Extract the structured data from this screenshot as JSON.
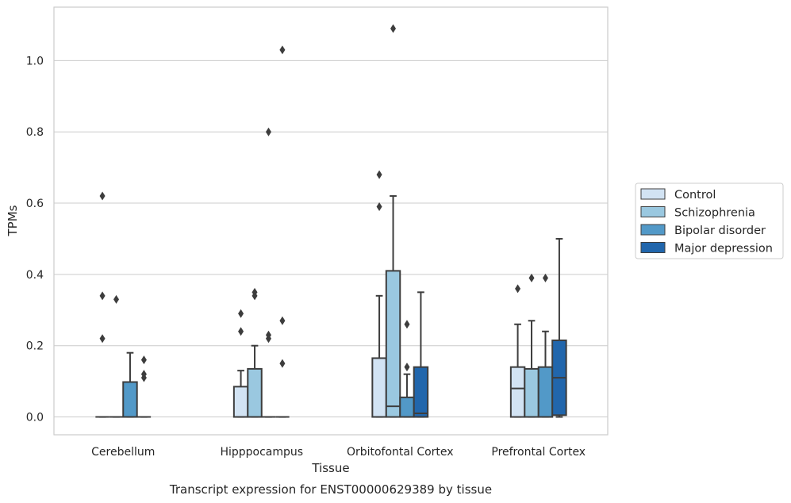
{
  "chart_data": {
    "type": "box",
    "xlabel": "Tissue",
    "ylabel": "TPMs",
    "caption": "Transcript expression for ENST00000629389 by tissue",
    "ylim": [
      -0.05,
      1.15
    ],
    "yticks": [
      "0.0",
      "0.2",
      "0.4",
      "0.6",
      "0.8",
      "1.0"
    ],
    "grid": true,
    "legend_position": "right",
    "categories": [
      "Cerebellum",
      "Hipppocampus",
      "Orbitofontal Cortex",
      "Prefrontal Cortex"
    ],
    "series": [
      {
        "name": "Control",
        "color": "#d2e3f3",
        "boxes": [
          {
            "min": 0,
            "q1": 0,
            "median": 0,
            "q3": 0,
            "max": 0,
            "outliers": [
              0.62,
              0.34,
              0.22
            ]
          },
          {
            "min": 0,
            "q1": 0,
            "median": 0,
            "q3": 0.085,
            "max": 0.13,
            "outliers": [
              0.29,
              0.24
            ]
          },
          {
            "min": 0,
            "q1": 0,
            "median": 0,
            "q3": 0.165,
            "max": 0.34,
            "outliers": [
              0.68,
              0.59
            ]
          },
          {
            "min": 0,
            "q1": 0,
            "median": 0.08,
            "q3": 0.14,
            "max": 0.26,
            "outliers": [
              0.36
            ]
          }
        ]
      },
      {
        "name": "Schizophrenia",
        "color": "#9ac8e0",
        "boxes": [
          {
            "min": 0,
            "q1": 0,
            "median": 0,
            "q3": 0,
            "max": 0,
            "outliers": [
              0.33
            ]
          },
          {
            "min": 0,
            "q1": 0,
            "median": 0,
            "q3": 0.135,
            "max": 0.2,
            "outliers": [
              0.35,
              0.34
            ]
          },
          {
            "min": 0,
            "q1": 0,
            "median": 0.03,
            "q3": 0.41,
            "max": 0.62,
            "outliers": [
              1.09
            ]
          },
          {
            "min": 0,
            "q1": 0,
            "median": 0,
            "q3": 0.135,
            "max": 0.27,
            "outliers": [
              0.39
            ]
          }
        ]
      },
      {
        "name": "Bipolar disorder",
        "color": "#5299c8",
        "boxes": [
          {
            "min": 0,
            "q1": 0,
            "median": 0,
            "q3": 0.098,
            "max": 0.18,
            "outliers": []
          },
          {
            "min": 0,
            "q1": 0,
            "median": 0,
            "q3": 0,
            "max": 0,
            "outliers": [
              0.8,
              0.23,
              0.22
            ]
          },
          {
            "min": 0,
            "q1": 0,
            "median": 0,
            "q3": 0.055,
            "max": 0.12,
            "outliers": [
              0.26,
              0.14
            ]
          },
          {
            "min": 0,
            "q1": 0,
            "median": 0,
            "q3": 0.14,
            "max": 0.24,
            "outliers": [
              0.39
            ]
          }
        ]
      },
      {
        "name": "Major depression",
        "color": "#2166ac",
        "boxes": [
          {
            "min": 0,
            "q1": 0,
            "median": 0,
            "q3": 0,
            "max": 0,
            "outliers": [
              0.16,
              0.12,
              0.11
            ]
          },
          {
            "min": 0,
            "q1": 0,
            "median": 0,
            "q3": 0,
            "max": 0,
            "outliers": [
              1.03,
              0.27,
              0.15
            ]
          },
          {
            "min": 0,
            "q1": 0,
            "median": 0.01,
            "q3": 0.14,
            "max": 0.35,
            "outliers": []
          },
          {
            "min": 0,
            "q1": 0.005,
            "median": 0.11,
            "q3": 0.215,
            "max": 0.5,
            "outliers": []
          }
        ]
      }
    ]
  }
}
